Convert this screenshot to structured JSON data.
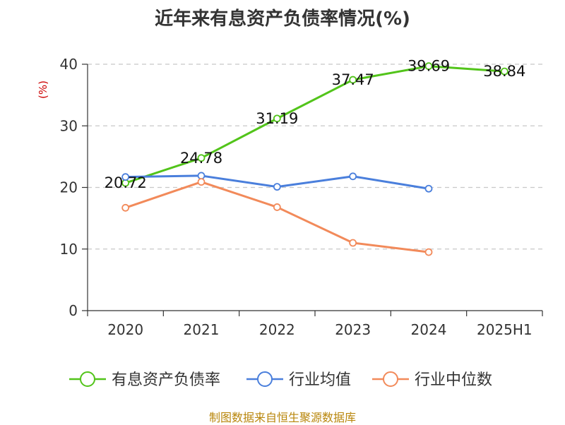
{
  "chart_data": {
    "type": "line",
    "title": "近年来有息资产负债率情况(%)",
    "ylabel": "(%)",
    "xlabel": "",
    "categories": [
      "2020",
      "2021",
      "2022",
      "2023",
      "2024",
      "2025H1"
    ],
    "yticks": [
      "0",
      "10",
      "20",
      "30",
      "40"
    ],
    "ylim": [
      0,
      40
    ],
    "grid": true,
    "legend_position": "bottom",
    "series": [
      {
        "name": "有息资产负债率",
        "color": "#52c41a",
        "values": [
          20.72,
          24.78,
          31.19,
          37.47,
          39.69,
          38.84
        ],
        "labels": [
          "20.72",
          "24.78",
          "31.19",
          "37.47",
          "39.69",
          "38.84"
        ]
      },
      {
        "name": "行业均值",
        "color": "#4a7fdc",
        "values": [
          21.7,
          21.9,
          20.1,
          21.8,
          19.8,
          null
        ],
        "labels": []
      },
      {
        "name": "行业中位数",
        "color": "#f28a5a",
        "values": [
          16.7,
          20.9,
          16.8,
          11.0,
          9.5,
          null
        ],
        "labels": []
      }
    ]
  },
  "source": "制图数据来自恒生聚源数据库"
}
